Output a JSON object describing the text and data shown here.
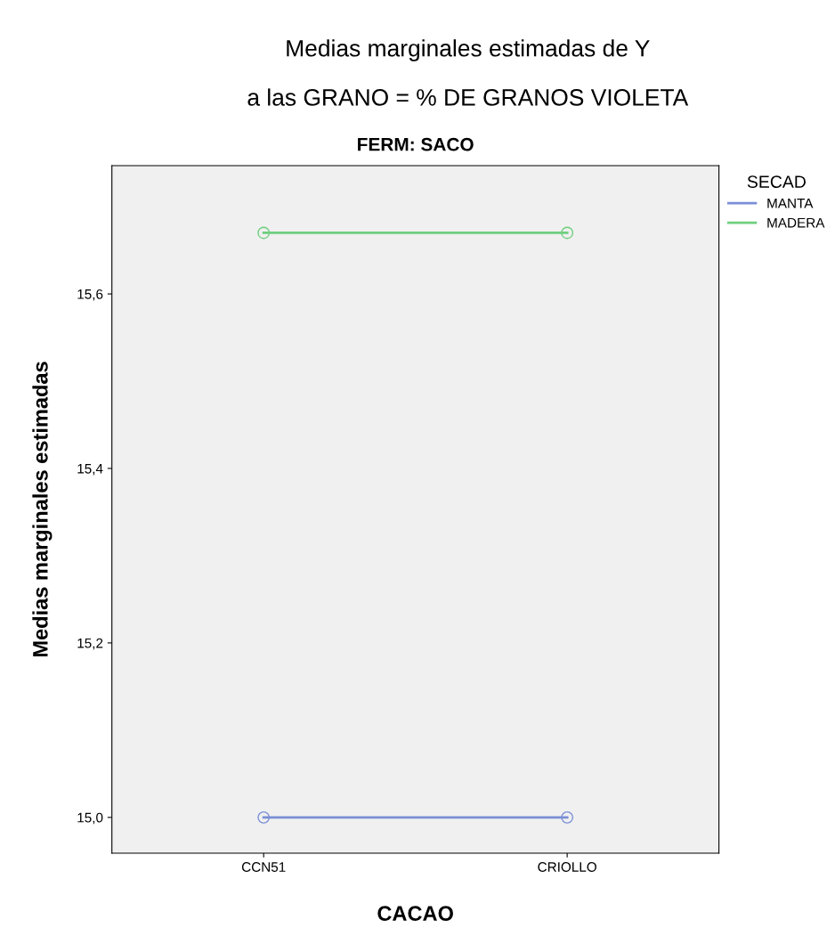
{
  "chart_data": {
    "type": "line",
    "title": "Medias marginales estimadas de Y\na las GRANO = % DE GRANOS VIOLETA",
    "subtitle": "FERM: SACO",
    "xlabel": "CACAO",
    "ylabel": "Medias marginales estimadas",
    "legend_title": "SECAD",
    "categories": [
      "CCN51",
      "CRIOLLO"
    ],
    "series": [
      {
        "name": "MANTA",
        "color": "#7b8fd6",
        "values": [
          15.0,
          15.0
        ]
      },
      {
        "name": "MADERA",
        "color": "#6fcf7f",
        "values": [
          15.67,
          15.67
        ]
      }
    ],
    "ylim": [
      14.959,
      15.747
    ],
    "yticks": [
      {
        "value": 15.0,
        "label": "15,0"
      },
      {
        "value": 15.2,
        "label": "15,2"
      },
      {
        "value": 15.4,
        "label": "15,4"
      },
      {
        "value": 15.6,
        "label": "15,6"
      }
    ],
    "marker": "circle",
    "legend": "right",
    "grid": false
  }
}
